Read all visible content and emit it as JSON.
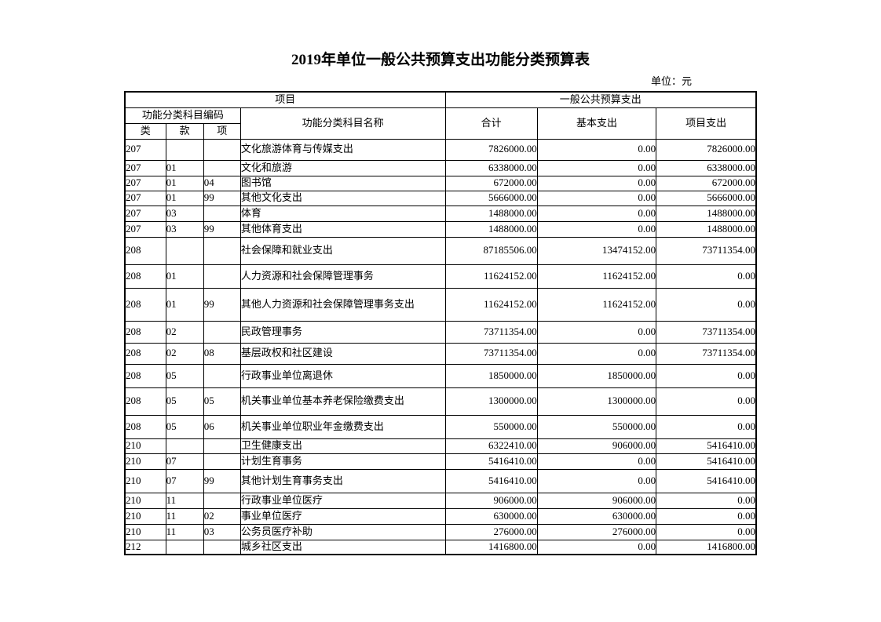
{
  "page": {
    "title": "2019年单位一般公共预算支出功能分类预算表",
    "unit_label": "单位：元"
  },
  "table": {
    "header": {
      "project_group": "项目",
      "budget_group": "一般公共预算支出",
      "code_group": "功能分类科目编码",
      "name_col": "功能分类科目名称",
      "total_col": "合计",
      "basic_col": "基本支出",
      "project_col": "项目支出",
      "class_col": "类",
      "section_col": "款",
      "item_col": "项"
    },
    "rows": [
      {
        "code_class": "207",
        "code_section": "",
        "code_item": "",
        "name": "文化旅游体育与传媒支出",
        "total": "7826000.00",
        "basic": "0.00",
        "project": "7826000.00"
      },
      {
        "code_class": "207",
        "code_section": "01",
        "code_item": "",
        "name": "文化和旅游",
        "total": "6338000.00",
        "basic": "0.00",
        "project": "6338000.00"
      },
      {
        "code_class": "207",
        "code_section": "01",
        "code_item": "04",
        "name": "图书馆",
        "total": "672000.00",
        "basic": "0.00",
        "project": "672000.00"
      },
      {
        "code_class": "207",
        "code_section": "01",
        "code_item": "99",
        "name": "其他文化支出",
        "total": "5666000.00",
        "basic": "0.00",
        "project": "5666000.00"
      },
      {
        "code_class": "207",
        "code_section": "03",
        "code_item": "",
        "name": "体育",
        "total": "1488000.00",
        "basic": "0.00",
        "project": "1488000.00"
      },
      {
        "code_class": "207",
        "code_section": "03",
        "code_item": "99",
        "name": "其他体育支出",
        "total": "1488000.00",
        "basic": "0.00",
        "project": "1488000.00"
      },
      {
        "code_class": "208",
        "code_section": "",
        "code_item": "",
        "name": "社会保障和就业支出",
        "total": "87185506.00",
        "basic": "13474152.00",
        "project": "73711354.00"
      },
      {
        "code_class": "208",
        "code_section": "01",
        "code_item": "",
        "name": "人力资源和社会保障管理事务",
        "total": "11624152.00",
        "basic": "11624152.00",
        "project": "0.00"
      },
      {
        "code_class": "208",
        "code_section": "01",
        "code_item": "99",
        "name": "其他人力资源和社会保障管理事务支出",
        "total": "11624152.00",
        "basic": "11624152.00",
        "project": "0.00"
      },
      {
        "code_class": "208",
        "code_section": "02",
        "code_item": "",
        "name": "民政管理事务",
        "total": "73711354.00",
        "basic": "0.00",
        "project": "73711354.00"
      },
      {
        "code_class": "208",
        "code_section": "02",
        "code_item": "08",
        "name": "基层政权和社区建设",
        "total": "73711354.00",
        "basic": "0.00",
        "project": "73711354.00"
      },
      {
        "code_class": "208",
        "code_section": "05",
        "code_item": "",
        "name": "行政事业单位离退休",
        "total": "1850000.00",
        "basic": "1850000.00",
        "project": "0.00"
      },
      {
        "code_class": "208",
        "code_section": "05",
        "code_item": "05",
        "name": "机关事业单位基本养老保险缴费支出",
        "total": "1300000.00",
        "basic": "1300000.00",
        "project": "0.00"
      },
      {
        "code_class": "208",
        "code_section": "05",
        "code_item": "06",
        "name": "机关事业单位职业年金缴费支出",
        "total": "550000.00",
        "basic": "550000.00",
        "project": "0.00"
      },
      {
        "code_class": "210",
        "code_section": "",
        "code_item": "",
        "name": "卫生健康支出",
        "total": "6322410.00",
        "basic": "906000.00",
        "project": "5416410.00"
      },
      {
        "code_class": "210",
        "code_section": "07",
        "code_item": "",
        "name": "计划生育事务",
        "total": "5416410.00",
        "basic": "0.00",
        "project": "5416410.00"
      },
      {
        "code_class": "210",
        "code_section": "07",
        "code_item": "99",
        "name": "其他计划生育事务支出",
        "total": "5416410.00",
        "basic": "0.00",
        "project": "5416410.00"
      },
      {
        "code_class": "210",
        "code_section": "11",
        "code_item": "",
        "name": "行政事业单位医疗",
        "total": "906000.00",
        "basic": "906000.00",
        "project": "0.00"
      },
      {
        "code_class": "210",
        "code_section": "11",
        "code_item": "02",
        "name": "事业单位医疗",
        "total": "630000.00",
        "basic": "630000.00",
        "project": "0.00"
      },
      {
        "code_class": "210",
        "code_section": "11",
        "code_item": "03",
        "name": "公务员医疗补助",
        "total": "276000.00",
        "basic": "276000.00",
        "project": "0.00"
      },
      {
        "code_class": "212",
        "code_section": "",
        "code_item": "",
        "name": "城乡社区支出",
        "total": "1416800.00",
        "basic": "0.00",
        "project": "1416800.00"
      }
    ]
  }
}
